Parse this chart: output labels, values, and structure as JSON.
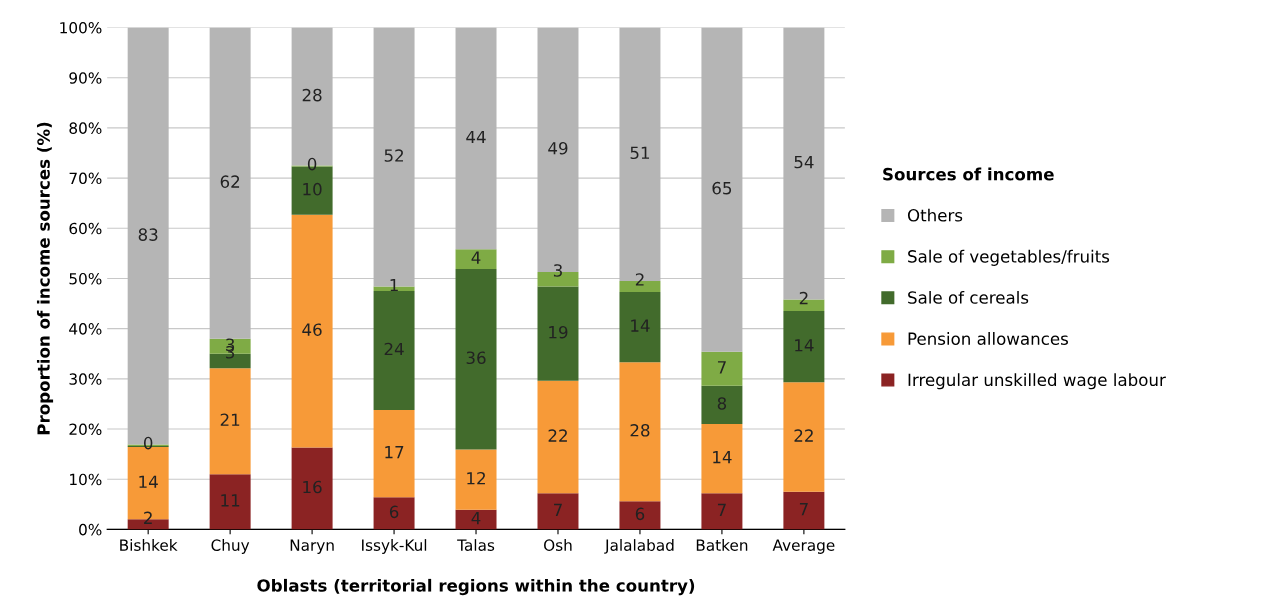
{
  "chart_data": {
    "type": "bar",
    "stacked": true,
    "xlabel": "Oblasts (territorial regions within the country)",
    "ylabel": "Proportion of income sources (%)",
    "legend_title": "Sources of income",
    "legend": "right",
    "grid": "y",
    "categories": [
      "Bishkek",
      "Chuy",
      "Naryn",
      "Issyk-Kul",
      "Talas",
      "Osh",
      "Jalalabad",
      "Batken",
      "Average"
    ],
    "ylim": [
      0,
      100
    ],
    "yticks": [
      {
        "value": 0,
        "label": "0%"
      },
      {
        "value": 10,
        "label": "10%"
      },
      {
        "value": 20,
        "label": "20%"
      },
      {
        "value": 30,
        "label": "30%"
      },
      {
        "value": 40,
        "label": "40%"
      },
      {
        "value": 50,
        "label": "50%"
      },
      {
        "value": 60,
        "label": "60%"
      },
      {
        "value": 70,
        "label": "70%"
      },
      {
        "value": 80,
        "label": "80%"
      },
      {
        "value": 90,
        "label": "90%"
      },
      {
        "value": 100,
        "label": "100%"
      }
    ],
    "series": [
      {
        "name": "Irregular unskilled wage labour",
        "color": "#8b2323",
        "values": [
          2.0,
          11.0,
          16.3,
          6.4,
          3.9,
          7.2,
          5.6,
          7.2,
          7.5
        ],
        "value_labels": [
          "2",
          "11",
          "16",
          "6",
          "4",
          "7",
          "6",
          "7",
          "7"
        ]
      },
      {
        "name": "Pension allowances",
        "color": "#f79a38",
        "values": [
          14.4,
          21.1,
          46.4,
          17.4,
          12.0,
          22.4,
          27.7,
          13.8,
          21.8
        ],
        "value_labels": [
          "14",
          "21",
          "46",
          "17",
          "12",
          "22",
          "28",
          "14",
          "22"
        ]
      },
      {
        "name": "Sale of cereals",
        "color": "#426b2c",
        "values": [
          0.2,
          2.9,
          9.6,
          23.7,
          36.0,
          18.8,
          14.0,
          7.6,
          14.2
        ],
        "value_labels": [
          null,
          "3",
          "10",
          "24",
          "36",
          "19",
          "14",
          "8",
          "14"
        ]
      },
      {
        "name": "Sale of vegetables/fruits",
        "color": "#7fab45",
        "values": [
          0.3,
          3.0,
          0.2,
          0.9,
          3.9,
          2.9,
          2.2,
          6.8,
          2.3
        ],
        "value_labels": [
          "0",
          "3",
          "0",
          "1",
          "4",
          "3",
          "2",
          "7",
          "2"
        ]
      },
      {
        "name": "Others",
        "color": "#b5b5b5",
        "values": [
          83.1,
          62.0,
          27.5,
          51.6,
          44.2,
          48.7,
          50.5,
          64.6,
          54.2
        ],
        "value_labels": [
          "83",
          "62",
          "28",
          "52",
          "44",
          "49",
          "51",
          "65",
          "54"
        ]
      }
    ]
  }
}
